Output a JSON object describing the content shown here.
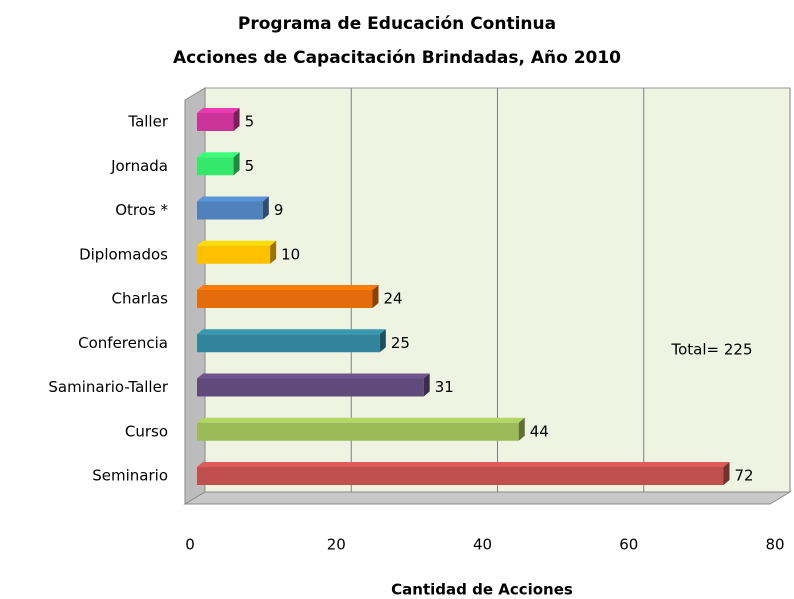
{
  "chart_data": {
    "type": "bar",
    "orientation": "horizontal",
    "title": "Programa de Educación Continua",
    "subtitle": "Acciones de Capacitación Brindadas, Año 2010",
    "x_label": "Cantidad de Acciones",
    "annotation": "Total= 225",
    "categories": [
      "Taller",
      "Jornada",
      "Otros *",
      "Diplomados",
      "Charlas",
      "Conferencia",
      "Saminario-Taller",
      "Curso",
      "Seminario"
    ],
    "values": [
      5,
      5,
      9,
      10,
      24,
      25,
      31,
      44,
      72
    ],
    "colors": [
      "#cc3399",
      "#33e86a",
      "#4f81bd",
      "#ffc000",
      "#e46c0a",
      "#31849b",
      "#604a7b",
      "#9bbb59",
      "#c0504d"
    ],
    "xlim": [
      0,
      80
    ],
    "xticks": [
      0,
      20,
      40,
      60,
      80
    ],
    "grid": true
  }
}
